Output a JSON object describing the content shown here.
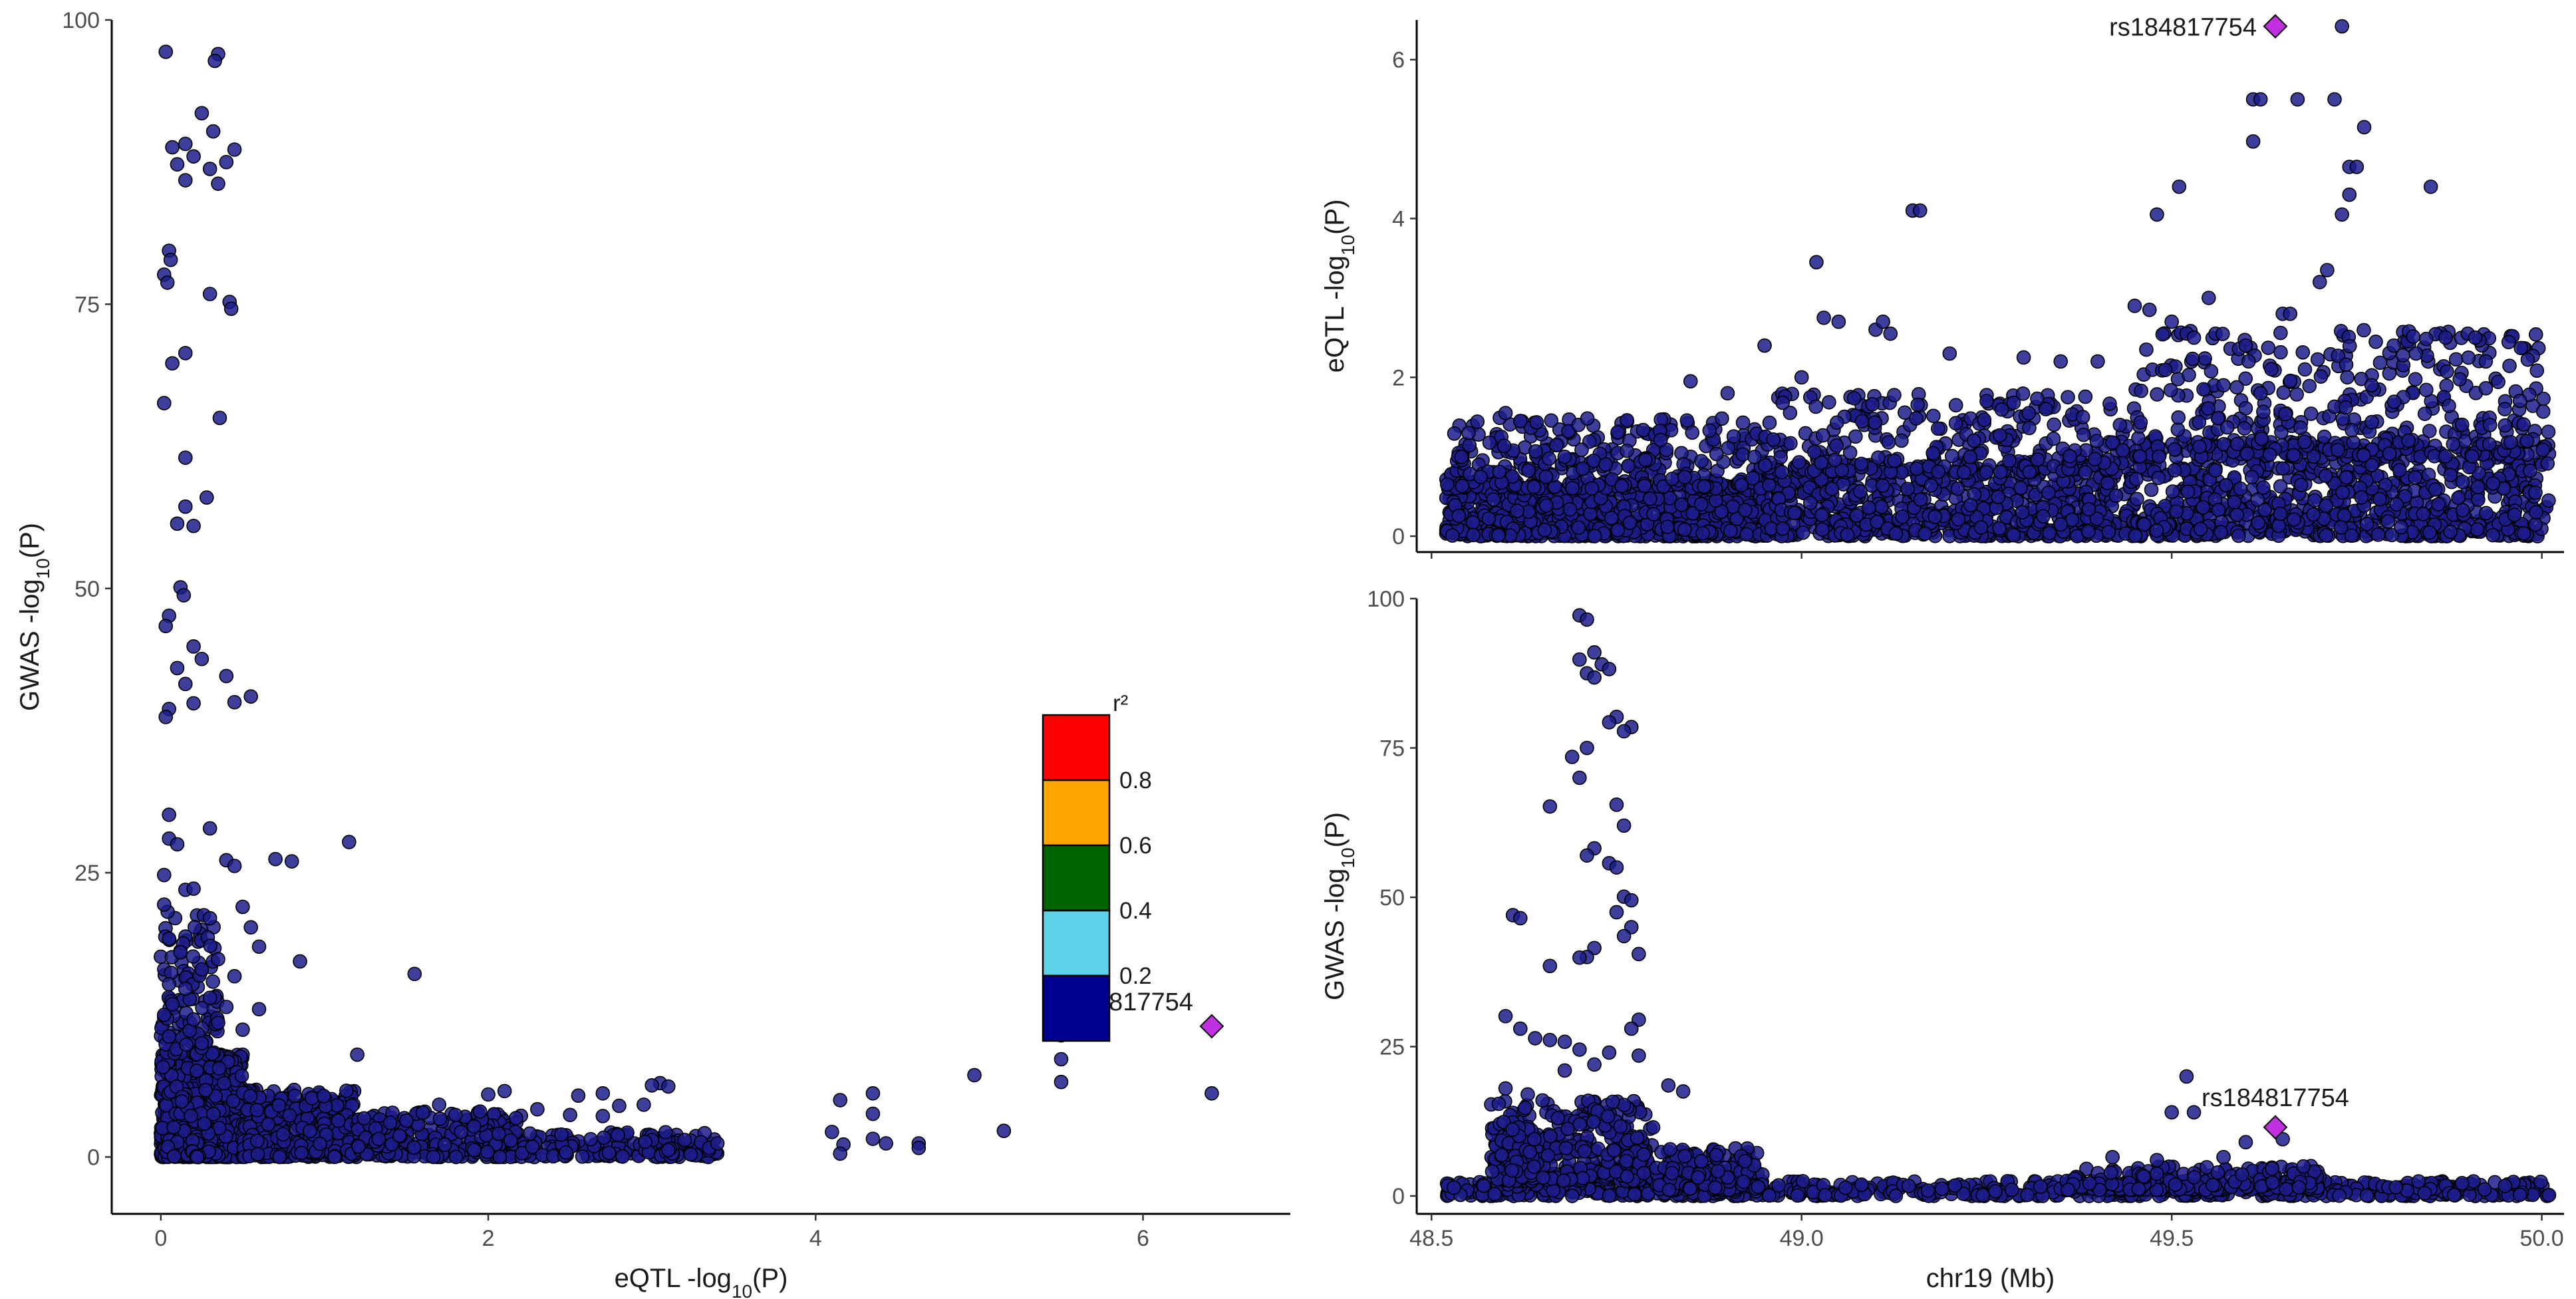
{
  "chart_data": [
    {
      "id": "left",
      "type": "scatter",
      "xlabel": {
        "main": "eQTL -log",
        "sub": "10",
        "end": "(P)"
      },
      "ylabel": {
        "main": "GWAS -log",
        "sub": "10",
        "end": "(P)"
      },
      "xlim": [
        -0.3,
        6.9
      ],
      "ylim": [
        -5,
        100
      ],
      "xticks": [
        "0",
        "2",
        "4",
        "6"
      ],
      "yticks": [
        "0",
        "25",
        "50",
        "75",
        "100"
      ],
      "grid": false,
      "point_color": "#1c1c8c",
      "lead_color": "#c030e0",
      "lead_snp": {
        "label": "rs184817754",
        "x": 6.42,
        "y": 11.5
      },
      "points": [
        [
          0.03,
          97.2
        ],
        [
          0.35,
          97.0
        ],
        [
          0.33,
          96.4
        ],
        [
          0.25,
          91.8
        ],
        [
          0.32,
          90.2
        ],
        [
          0.15,
          89.1
        ],
        [
          0.45,
          88.6
        ],
        [
          0.07,
          88.8
        ],
        [
          0.2,
          88.0
        ],
        [
          0.1,
          87.3
        ],
        [
          0.3,
          86.9
        ],
        [
          0.4,
          87.5
        ],
        [
          0.15,
          85.9
        ],
        [
          0.35,
          85.6
        ],
        [
          0.05,
          79.7
        ],
        [
          0.06,
          78.9
        ],
        [
          0.02,
          77.6
        ],
        [
          0.04,
          76.9
        ],
        [
          0.3,
          75.9
        ],
        [
          0.42,
          75.2
        ],
        [
          0.43,
          74.6
        ],
        [
          0.15,
          70.7
        ],
        [
          0.07,
          69.8
        ],
        [
          0.02,
          66.3
        ],
        [
          0.36,
          65.0
        ],
        [
          0.15,
          61.5
        ],
        [
          0.28,
          58.0
        ],
        [
          0.15,
          57.2
        ],
        [
          0.1,
          55.7
        ],
        [
          0.2,
          55.5
        ],
        [
          0.12,
          50.1
        ],
        [
          0.14,
          49.4
        ],
        [
          0.05,
          47.6
        ],
        [
          0.03,
          46.7
        ],
        [
          0.2,
          44.9
        ],
        [
          0.25,
          43.8
        ],
        [
          0.1,
          43.0
        ],
        [
          0.15,
          41.6
        ],
        [
          0.4,
          42.3
        ],
        [
          0.55,
          40.5
        ],
        [
          0.45,
          40.0
        ],
        [
          0.05,
          39.4
        ],
        [
          0.03,
          38.7
        ],
        [
          0.2,
          39.9
        ],
        [
          0.05,
          30.1
        ],
        [
          0.3,
          28.9
        ],
        [
          0.05,
          28.0
        ],
        [
          0.1,
          27.5
        ],
        [
          0.7,
          26.2
        ],
        [
          0.8,
          26.0
        ],
        [
          1.15,
          27.7
        ],
        [
          0.4,
          26.1
        ],
        [
          0.45,
          25.6
        ],
        [
          0.02,
          24.8
        ],
        [
          0.15,
          23.5
        ],
        [
          0.2,
          23.6
        ],
        [
          0.02,
          22.2
        ],
        [
          0.5,
          22.0
        ],
        [
          0.55,
          20.2
        ],
        [
          0.3,
          21.0
        ],
        [
          0.6,
          18.5
        ],
        [
          0.35,
          17.4
        ],
        [
          0.85,
          17.2
        ],
        [
          1.55,
          16.1
        ],
        [
          0.05,
          19.2
        ],
        [
          0.12,
          18.0
        ],
        [
          0.25,
          16.5
        ],
        [
          0.45,
          15.9
        ],
        [
          0.05,
          15.2
        ],
        [
          0.15,
          14.8
        ],
        [
          0.3,
          14.0
        ],
        [
          0.4,
          13.2
        ],
        [
          0.6,
          13.0
        ],
        [
          0.02,
          12.5
        ],
        [
          0.2,
          12.1
        ],
        [
          0.35,
          11.8
        ],
        [
          0.5,
          11.2
        ],
        [
          0.05,
          10.6
        ],
        [
          0.25,
          10.0
        ],
        [
          1.2,
          9.0
        ],
        [
          4.97,
          7.2
        ],
        [
          5.5,
          10.7
        ],
        [
          5.5,
          8.6
        ],
        [
          5.5,
          6.6
        ],
        [
          5.15,
          2.3
        ],
        [
          4.15,
          5.0
        ],
        [
          4.1,
          2.2
        ],
        [
          4.17,
          1.1
        ],
        [
          4.15,
          0.3
        ],
        [
          4.35,
          5.6
        ],
        [
          4.35,
          3.8
        ],
        [
          4.35,
          1.6
        ],
        [
          4.43,
          1.2
        ],
        [
          4.63,
          1.2
        ],
        [
          4.63,
          0.8
        ],
        [
          6.42,
          5.6
        ],
        [
          3.05,
          6.5
        ],
        [
          3.0,
          6.3
        ],
        [
          3.1,
          6.2
        ],
        [
          2.95,
          4.6
        ],
        [
          2.8,
          4.5
        ],
        [
          2.7,
          5.6
        ],
        [
          2.7,
          3.6
        ],
        [
          2.55,
          5.4
        ],
        [
          2.5,
          3.7
        ],
        [
          2.3,
          4.2
        ],
        [
          2.1,
          5.8
        ],
        [
          2.0,
          5.5
        ],
        [
          1.95,
          4.0
        ],
        [
          1.8,
          3.7
        ],
        [
          1.7,
          4.6
        ],
        [
          1.6,
          3.9
        ],
        [
          1.5,
          3.2
        ],
        [
          3.2,
          1.5
        ],
        [
          3.3,
          1.3
        ],
        [
          3.35,
          0.8
        ],
        [
          3.4,
          1.2
        ],
        [
          3.1,
          0.6
        ]
      ],
      "bulk": [
        {
          "n": 1050,
          "xmin": 0,
          "xmax": 0.5,
          "ymin": 0,
          "ymax": 9
        },
        {
          "n": 420,
          "xmin": 0.5,
          "xmax": 1.2,
          "ymin": 0,
          "ymax": 6
        },
        {
          "n": 260,
          "xmin": 1.2,
          "xmax": 2.2,
          "ymin": 0,
          "ymax": 4
        },
        {
          "n": 160,
          "xmin": 2.2,
          "xmax": 3.4,
          "ymin": 0,
          "ymax": 2.2
        },
        {
          "n": 110,
          "xmin": 0,
          "xmax": 0.35,
          "ymin": 9,
          "ymax": 22
        }
      ],
      "legend": {
        "title": "r²",
        "labels": [
          "0.8",
          "0.6",
          "0.4",
          "0.2"
        ],
        "colors": [
          "#ff0000",
          "#ffa500",
          "#006400",
          "#5cd1e8",
          "#000090"
        ]
      }
    },
    {
      "id": "top-right",
      "type": "scatter",
      "xlabel": "",
      "ylabel": {
        "main": "eQTL -log",
        "sub": "10",
        "end": "(P)"
      },
      "xlim": [
        48.48,
        50.03
      ],
      "ylim": [
        -0.2,
        6.5
      ],
      "yticks": [
        "0",
        "2",
        "4",
        "6"
      ],
      "xticks": [
        "48.5",
        "49.0",
        "49.5",
        "50.0"
      ],
      "show_xtick_labels": false,
      "grid": false,
      "lead_snp": {
        "label": "rs184817754",
        "x": 49.64,
        "y": 6.42
      },
      "points": [
        [
          49.73,
          6.42
        ],
        [
          49.61,
          5.5
        ],
        [
          49.62,
          5.5
        ],
        [
          49.67,
          5.5
        ],
        [
          49.72,
          5.5
        ],
        [
          49.61,
          4.97
        ],
        [
          49.76,
          5.15
        ],
        [
          49.74,
          4.65
        ],
        [
          49.75,
          4.65
        ],
        [
          49.74,
          4.3
        ],
        [
          49.73,
          4.05
        ],
        [
          49.85,
          4.4
        ],
        [
          49.51,
          4.4
        ],
        [
          49.48,
          4.05
        ],
        [
          49.15,
          4.1
        ],
        [
          49.16,
          4.1
        ],
        [
          49.02,
          3.45
        ],
        [
          49.65,
          2.8
        ],
        [
          49.66,
          2.8
        ],
        [
          49.7,
          3.2
        ],
        [
          49.71,
          3.35
        ],
        [
          49.55,
          3.0
        ],
        [
          49.45,
          2.9
        ],
        [
          49.47,
          2.85
        ],
        [
          49.5,
          2.7
        ],
        [
          49.53,
          2.5
        ],
        [
          49.6,
          2.4
        ],
        [
          49.68,
          2.1
        ],
        [
          49.8,
          2.4
        ],
        [
          49.83,
          2.3
        ],
        [
          49.87,
          2.5
        ],
        [
          49.9,
          2.55
        ],
        [
          49.91,
          2.5
        ],
        [
          49.03,
          2.75
        ],
        [
          49.05,
          2.7
        ],
        [
          49.1,
          2.6
        ],
        [
          49.11,
          2.7
        ],
        [
          49.12,
          2.55
        ],
        [
          48.95,
          2.4
        ],
        [
          49.2,
          2.3
        ],
        [
          49.3,
          2.25
        ],
        [
          49.35,
          2.2
        ],
        [
          49.4,
          2.2
        ],
        [
          49.0,
          2.0
        ],
        [
          48.85,
          1.95
        ],
        [
          48.9,
          1.8
        ],
        [
          49.25,
          1.7
        ],
        [
          49.33,
          1.6
        ],
        [
          49.38,
          1.5
        ],
        [
          49.43,
          1.4
        ],
        [
          49.57,
          1.9
        ],
        [
          49.62,
          1.8
        ],
        [
          49.77,
          1.9
        ],
        [
          49.93,
          1.4
        ],
        [
          49.95,
          1.6
        ],
        [
          49.98,
          1.2
        ],
        [
          48.6,
          1.55
        ],
        [
          48.62,
          1.45
        ],
        [
          48.55,
          1.3
        ]
      ],
      "bulk": [
        {
          "n": 900,
          "xmin": 48.52,
          "xmax": 48.95,
          "ymin": 0,
          "ymax": 0.7
        },
        {
          "n": 300,
          "xmin": 48.52,
          "xmax": 48.95,
          "ymin": 0.6,
          "ymax": 1.5
        },
        {
          "n": 700,
          "xmin": 48.95,
          "xmax": 49.45,
          "ymin": 0,
          "ymax": 0.9
        },
        {
          "n": 280,
          "xmin": 48.95,
          "xmax": 49.45,
          "ymin": 0.8,
          "ymax": 1.8
        },
        {
          "n": 800,
          "xmin": 49.45,
          "xmax": 50.01,
          "ymin": 0,
          "ymax": 1.2
        },
        {
          "n": 360,
          "xmin": 49.45,
          "xmax": 50.01,
          "ymin": 1.0,
          "ymax": 2.6
        }
      ]
    },
    {
      "id": "bottom-right",
      "type": "scatter",
      "xlabel": "chr19 (Mb)",
      "ylabel": {
        "main": "GWAS -log",
        "sub": "10",
        "end": "(P)"
      },
      "xlim": [
        48.48,
        50.03
      ],
      "ylim": [
        -3,
        100
      ],
      "yticks": [
        "0",
        "25",
        "50",
        "75",
        "100"
      ],
      "xticks": [
        "48.5",
        "49.0",
        "49.5",
        "50.0"
      ],
      "show_xtick_labels": true,
      "grid": false,
      "lead_snp": {
        "label": "rs184817754",
        "x": 49.64,
        "y": 11.5
      },
      "points": [
        [
          48.7,
          97.2
        ],
        [
          48.71,
          96.5
        ],
        [
          48.72,
          91.0
        ],
        [
          48.7,
          89.8
        ],
        [
          48.73,
          89.0
        ],
        [
          48.74,
          88.2
        ],
        [
          48.71,
          87.5
        ],
        [
          48.72,
          86.8
        ],
        [
          48.75,
          80.2
        ],
        [
          48.74,
          79.3
        ],
        [
          48.77,
          78.5
        ],
        [
          48.76,
          77.8
        ],
        [
          48.71,
          75.0
        ],
        [
          48.69,
          73.5
        ],
        [
          48.7,
          70.0
        ],
        [
          48.66,
          65.2
        ],
        [
          48.75,
          65.5
        ],
        [
          48.76,
          62.0
        ],
        [
          48.72,
          58.2
        ],
        [
          48.71,
          57.0
        ],
        [
          48.74,
          55.7
        ],
        [
          48.75,
          55.0
        ],
        [
          48.76,
          50.1
        ],
        [
          48.77,
          49.5
        ],
        [
          48.75,
          47.5
        ],
        [
          48.61,
          47.0
        ],
        [
          48.62,
          46.5
        ],
        [
          48.77,
          45.0
        ],
        [
          48.76,
          43.5
        ],
        [
          48.72,
          41.5
        ],
        [
          48.71,
          40.0
        ],
        [
          48.7,
          39.9
        ],
        [
          48.66,
          38.5
        ],
        [
          48.78,
          40.5
        ],
        [
          48.6,
          30.1
        ],
        [
          48.62,
          28.0
        ],
        [
          48.78,
          29.5
        ],
        [
          48.77,
          28.0
        ],
        [
          48.64,
          26.4
        ],
        [
          48.66,
          26.1
        ],
        [
          48.68,
          25.8
        ],
        [
          48.7,
          24.5
        ],
        [
          48.74,
          24.0
        ],
        [
          48.78,
          23.5
        ],
        [
          48.72,
          22.0
        ],
        [
          48.68,
          21.0
        ],
        [
          48.82,
          18.5
        ],
        [
          48.84,
          17.5
        ],
        [
          48.6,
          18.0
        ],
        [
          48.63,
          17.0
        ],
        [
          48.65,
          16.0
        ],
        [
          49.52,
          20.0
        ],
        [
          49.5,
          14.0
        ],
        [
          49.53,
          14.0
        ],
        [
          49.65,
          9.5
        ],
        [
          49.6,
          9.0
        ],
        [
          49.57,
          6.5
        ],
        [
          49.48,
          6.0
        ],
        [
          49.42,
          6.5
        ]
      ],
      "bulk": [
        {
          "n": 700,
          "xmin": 48.52,
          "xmax": 50.01,
          "ymin": 0,
          "ymax": 2.5
        },
        {
          "n": 400,
          "xmin": 48.58,
          "xmax": 48.8,
          "ymin": 2.5,
          "ymax": 16
        },
        {
          "n": 150,
          "xmin": 48.8,
          "xmax": 48.95,
          "ymin": 1,
          "ymax": 8
        },
        {
          "n": 200,
          "xmin": 49.35,
          "xmax": 49.7,
          "ymin": 1,
          "ymax": 5
        }
      ]
    }
  ]
}
